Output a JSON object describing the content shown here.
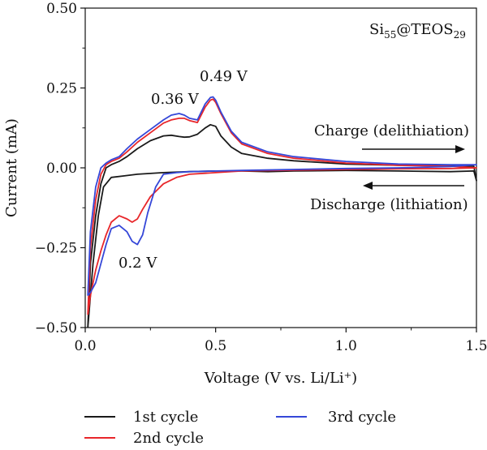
{
  "chart_data": {
    "type": "line",
    "title": "",
    "xlabel": "Voltage (V vs. Li/Li⁺)",
    "ylabel": "Current (mA)",
    "xlim": [
      0.0,
      1.5
    ],
    "ylim": [
      -0.5,
      0.5
    ],
    "x_ticks": [
      "0.0",
      "0.5",
      "1.0",
      "1.5"
    ],
    "y_ticks": [
      "0.50",
      "0.25",
      "0.00",
      "−0.25",
      "−0.50"
    ],
    "grid": false,
    "legend_position": "bottom",
    "sample_label": {
      "base": "Si",
      "sub1": "55",
      "mid": "@TEOS",
      "sub2": "29"
    },
    "annotations": {
      "peak_1": "0.36 V",
      "peak_2": "0.49 V",
      "peak_3": "0.2 V",
      "charge": "Charge (delithiation)",
      "discharge": "Discharge (lithiation)"
    },
    "series": [
      {
        "name": "1st cycle",
        "color": "#1a1a1a",
        "x": [
          0.01,
          0.02,
          0.04,
          0.06,
          0.08,
          0.1,
          0.13,
          0.16,
          0.2,
          0.25,
          0.3,
          0.33,
          0.36,
          0.38,
          0.4,
          0.43,
          0.46,
          0.48,
          0.5,
          0.52,
          0.56,
          0.6,
          0.7,
          0.8,
          1.0,
          1.2,
          1.4,
          1.49,
          1.5,
          1.49,
          1.4,
          1.2,
          1.0,
          0.8,
          0.7,
          0.6,
          0.5,
          0.4,
          0.3,
          0.2,
          0.15,
          0.1,
          0.07,
          0.05,
          0.03,
          0.02,
          0.01
        ],
        "y": [
          -0.5,
          -0.3,
          -0.15,
          -0.05,
          0.0,
          0.01,
          0.02,
          0.035,
          0.06,
          0.085,
          0.1,
          0.102,
          0.098,
          0.096,
          0.097,
          0.105,
          0.125,
          0.135,
          0.13,
          0.1,
          0.065,
          0.045,
          0.03,
          0.022,
          0.012,
          0.008,
          0.006,
          0.005,
          -0.04,
          -0.01,
          -0.012,
          -0.01,
          -0.008,
          -0.01,
          -0.012,
          -0.01,
          -0.01,
          -0.012,
          -0.015,
          -0.02,
          -0.025,
          -0.03,
          -0.06,
          -0.15,
          -0.3,
          -0.4,
          -0.5
        ]
      },
      {
        "name": "2nd cycle",
        "color": "#e8262a",
        "x": [
          0.01,
          0.02,
          0.04,
          0.06,
          0.08,
          0.1,
          0.13,
          0.16,
          0.2,
          0.25,
          0.3,
          0.33,
          0.36,
          0.38,
          0.4,
          0.43,
          0.46,
          0.48,
          0.49,
          0.5,
          0.52,
          0.56,
          0.6,
          0.7,
          0.8,
          1.0,
          1.2,
          1.4,
          1.5,
          1.4,
          1.2,
          1.0,
          0.8,
          0.6,
          0.5,
          0.4,
          0.35,
          0.3,
          0.25,
          0.22,
          0.2,
          0.18,
          0.16,
          0.13,
          0.1,
          0.08,
          0.06,
          0.04,
          0.02,
          0.01
        ],
        "y": [
          -0.46,
          -0.25,
          -0.1,
          -0.02,
          0.01,
          0.02,
          0.03,
          0.05,
          0.08,
          0.11,
          0.14,
          0.15,
          0.155,
          0.155,
          0.148,
          0.142,
          0.19,
          0.212,
          0.215,
          0.205,
          0.17,
          0.11,
          0.075,
          0.045,
          0.03,
          0.015,
          0.008,
          0.005,
          0.0,
          -0.002,
          -0.003,
          -0.005,
          -0.007,
          -0.01,
          -0.015,
          -0.02,
          -0.03,
          -0.05,
          -0.09,
          -0.13,
          -0.16,
          -0.17,
          -0.16,
          -0.15,
          -0.17,
          -0.21,
          -0.26,
          -0.32,
          -0.4,
          -0.46
        ]
      },
      {
        "name": "3rd cycle",
        "color": "#3547d8",
        "x": [
          0.01,
          0.02,
          0.04,
          0.06,
          0.08,
          0.1,
          0.13,
          0.16,
          0.2,
          0.25,
          0.3,
          0.33,
          0.36,
          0.38,
          0.4,
          0.43,
          0.46,
          0.48,
          0.49,
          0.5,
          0.52,
          0.56,
          0.6,
          0.7,
          0.8,
          1.0,
          1.2,
          1.4,
          1.5,
          1.4,
          1.2,
          1.0,
          0.8,
          0.6,
          0.5,
          0.4,
          0.35,
          0.3,
          0.27,
          0.24,
          0.22,
          0.2,
          0.18,
          0.16,
          0.13,
          0.1,
          0.08,
          0.06,
          0.04,
          0.02,
          0.01
        ],
        "y": [
          -0.4,
          -0.2,
          -0.06,
          0.0,
          0.015,
          0.025,
          0.035,
          0.06,
          0.09,
          0.12,
          0.15,
          0.165,
          0.17,
          0.165,
          0.155,
          0.15,
          0.2,
          0.22,
          0.222,
          0.212,
          0.175,
          0.115,
          0.08,
          0.05,
          0.035,
          0.02,
          0.012,
          0.01,
          0.01,
          0.004,
          0.0,
          -0.002,
          -0.005,
          -0.008,
          -0.01,
          -0.012,
          -0.015,
          -0.02,
          -0.06,
          -0.14,
          -0.21,
          -0.24,
          -0.23,
          -0.2,
          -0.18,
          -0.19,
          -0.24,
          -0.3,
          -0.36,
          -0.39,
          -0.4
        ]
      }
    ]
  }
}
